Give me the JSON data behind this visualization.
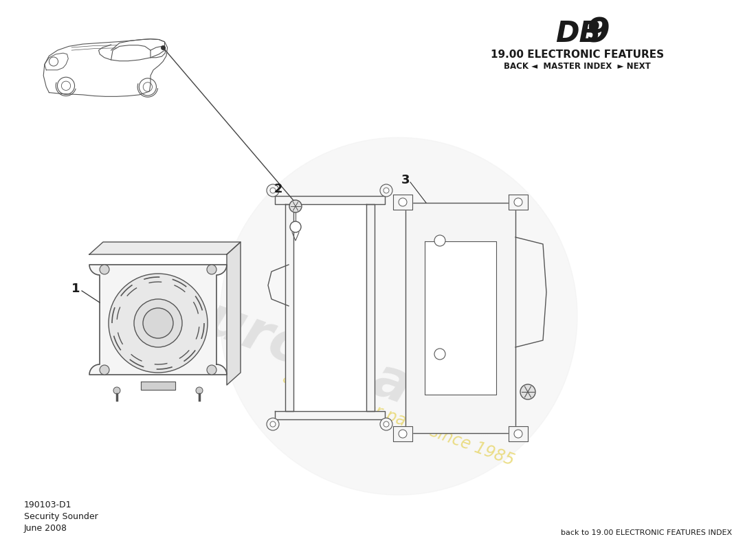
{
  "title_db": "DB",
  "title_9": "9",
  "title_section": "19.00 ELECTRONIC FEATURES",
  "nav_text": "BACK ◄  MASTER INDEX  ► NEXT",
  "bottom_left_line1": "190103-D1",
  "bottom_left_line2": "Security Sounder",
  "bottom_left_line3": "June 2008",
  "bottom_right": "back to 19.00 ELECTRONIC FEATURES INDEX",
  "bg_color": "#ffffff",
  "text_color": "#1a1a1a",
  "part_color": "#f5f5f5",
  "line_color": "#555555",
  "wm_logo_color": "#d8d8d8",
  "wm_text_color": "#e8e0a0",
  "wm_text2_color": "#e8d870"
}
